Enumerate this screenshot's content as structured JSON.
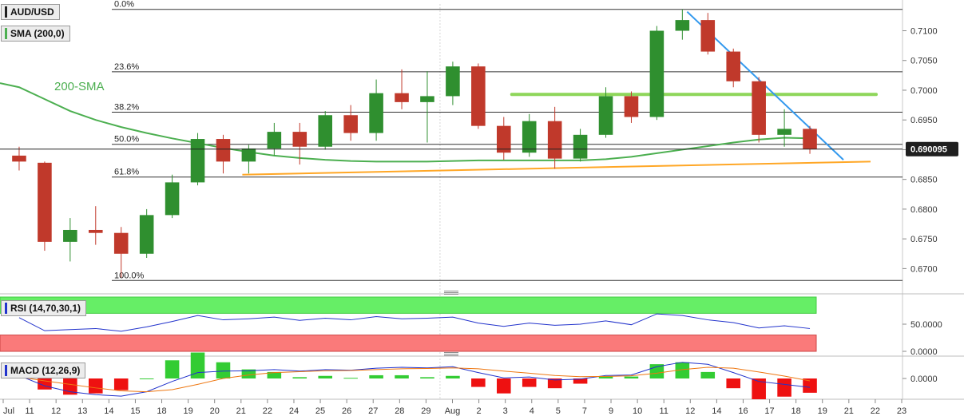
{
  "symbol": "AUD/USD",
  "legends": {
    "sma": "SMA (200,0)",
    "rsi": "RSI (14,70,30,1)",
    "macd": "MACD (12,26,9)"
  },
  "annotations": {
    "sma_text": "200-SMA",
    "current_price": "0.690095"
  },
  "colors": {
    "candle_up": "#2f8f2f",
    "candle_down": "#c0392b",
    "sma": "#4caf50",
    "support_line": "#ffa726",
    "resistance_line": "#8ed65a",
    "trendline": "#3399ee",
    "rsi_line": "#2233cc",
    "rsi_overbought": "#66ee66",
    "rsi_oversold": "#fa7a7a",
    "macd_line": "#2233cc",
    "signal_line": "#ee7711",
    "hist_pos": "#33cc33",
    "hist_neg": "#ee1111",
    "price_tag_bg": "#1f1f1f"
  },
  "chart_data": {
    "type": "candlestick",
    "title": "AUD/USD",
    "timeframe_labels": [
      "Jul",
      "11",
      "12",
      "13",
      "14",
      "15",
      "18",
      "19",
      "20",
      "21",
      "22",
      "24",
      "25",
      "26",
      "27",
      "28",
      "29",
      "Aug",
      "2",
      "3",
      "4",
      "5",
      "7",
      "9",
      "10",
      "11",
      "12",
      "14",
      "16",
      "17",
      "18",
      "19",
      "21",
      "22",
      "23"
    ],
    "price_axis": {
      "ticks": [
        "0.7100",
        "0.7050",
        "0.7000",
        "0.6950",
        "0.6900",
        "0.6850",
        "0.6800",
        "0.6750",
        "0.6700"
      ],
      "range": [
        0.6675,
        0.7145
      ]
    },
    "fibonacci": [
      {
        "label": "0.0%",
        "price": 0.7136
      },
      {
        "label": "23.6%",
        "price": 0.7031
      },
      {
        "label": "38.2%",
        "price": 0.6963
      },
      {
        "label": "50.0%",
        "price": 0.6909
      },
      {
        "label": "61.8%",
        "price": 0.6854
      },
      {
        "label": "100.0%",
        "price": 0.668
      }
    ],
    "current_price": 0.690095,
    "daily": [
      {
        "date": "Jul",
        "o": 0.689,
        "h": 0.6905,
        "l": 0.6865,
        "c": 0.688
      },
      {
        "date": "11",
        "o": 0.6878,
        "h": 0.688,
        "l": 0.673,
        "c": 0.6745
      },
      {
        "date": "12",
        "o": 0.6745,
        "h": 0.6785,
        "l": 0.6712,
        "c": 0.6765
      },
      {
        "date": "13",
        "o": 0.6765,
        "h": 0.6805,
        "l": 0.674,
        "c": 0.676
      },
      {
        "date": "14",
        "o": 0.676,
        "h": 0.677,
        "l": 0.6685,
        "c": 0.6725
      },
      {
        "date": "15",
        "o": 0.6725,
        "h": 0.68,
        "l": 0.6718,
        "c": 0.679
      },
      {
        "date": "18",
        "o": 0.679,
        "h": 0.6858,
        "l": 0.6785,
        "c": 0.6845
      },
      {
        "date": "19",
        "o": 0.6845,
        "h": 0.6928,
        "l": 0.684,
        "c": 0.6918
      },
      {
        "date": "20",
        "o": 0.6918,
        "h": 0.6925,
        "l": 0.686,
        "c": 0.688
      },
      {
        "date": "21",
        "o": 0.688,
        "h": 0.6908,
        "l": 0.686,
        "c": 0.6902
      },
      {
        "date": "22",
        "o": 0.6902,
        "h": 0.6945,
        "l": 0.689,
        "c": 0.693
      },
      {
        "date": "24",
        "o": 0.693,
        "h": 0.6945,
        "l": 0.6875,
        "c": 0.6905
      },
      {
        "date": "25",
        "o": 0.6905,
        "h": 0.6965,
        "l": 0.69,
        "c": 0.6958
      },
      {
        "date": "26",
        "o": 0.6958,
        "h": 0.6975,
        "l": 0.6915,
        "c": 0.6928
      },
      {
        "date": "27",
        "o": 0.6928,
        "h": 0.7018,
        "l": 0.6915,
        "c": 0.6995
      },
      {
        "date": "28",
        "o": 0.6995,
        "h": 0.7035,
        "l": 0.6968,
        "c": 0.698
      },
      {
        "date": "29",
        "o": 0.698,
        "h": 0.7032,
        "l": 0.6912,
        "c": 0.699
      },
      {
        "date": "Aug",
        "o": 0.699,
        "h": 0.7048,
        "l": 0.6975,
        "c": 0.704
      },
      {
        "date": "2",
        "o": 0.704,
        "h": 0.7045,
        "l": 0.6935,
        "c": 0.694
      },
      {
        "date": "3",
        "o": 0.694,
        "h": 0.6955,
        "l": 0.6883,
        "c": 0.6895
      },
      {
        "date": "4",
        "o": 0.6895,
        "h": 0.696,
        "l": 0.6888,
        "c": 0.6948
      },
      {
        "date": "5",
        "o": 0.6948,
        "h": 0.6972,
        "l": 0.6868,
        "c": 0.6885
      },
      {
        "date": "7",
        "o": 0.6885,
        "h": 0.6935,
        "l": 0.688,
        "c": 0.6925
      },
      {
        "date": "9",
        "o": 0.6925,
        "h": 0.7005,
        "l": 0.692,
        "c": 0.699
      },
      {
        "date": "10",
        "o": 0.699,
        "h": 0.6998,
        "l": 0.6945,
        "c": 0.6955
      },
      {
        "date": "11",
        "o": 0.6955,
        "h": 0.7108,
        "l": 0.695,
        "c": 0.71
      },
      {
        "date": "12",
        "o": 0.71,
        "h": 0.7136,
        "l": 0.7085,
        "c": 0.7118
      },
      {
        "date": "14",
        "o": 0.7118,
        "h": 0.713,
        "l": 0.706,
        "c": 0.7065
      },
      {
        "date": "16",
        "o": 0.7065,
        "h": 0.707,
        "l": 0.7005,
        "c": 0.7015
      },
      {
        "date": "17",
        "o": 0.7015,
        "h": 0.7022,
        "l": 0.6912,
        "c": 0.6925
      },
      {
        "date": "18",
        "o": 0.6925,
        "h": 0.6968,
        "l": 0.6905,
        "c": 0.6935
      },
      {
        "date": "19",
        "o": 0.6935,
        "h": 0.694,
        "l": 0.6893,
        "c": 0.6901
      }
    ],
    "sma200": {
      "name": "200-SMA",
      "values": [
        0.7005,
        0.6985,
        0.6965,
        0.695,
        0.6938,
        0.6928,
        0.6919,
        0.6911,
        0.6903,
        0.6896,
        0.689,
        0.6886,
        0.6883,
        0.6881,
        0.688,
        0.688,
        0.688,
        0.6881,
        0.6882,
        0.6882,
        0.6882,
        0.6882,
        0.6882,
        0.6884,
        0.6888,
        0.6894,
        0.69,
        0.6906,
        0.6912,
        0.6917,
        0.692,
        0.6919
      ]
    },
    "rsi": {
      "params": "14,70,30,1",
      "axis_ticks": [
        "50.0000",
        "0.0000"
      ],
      "values": [
        62,
        38,
        40,
        42,
        37,
        45,
        55,
        66,
        58,
        60,
        63,
        57,
        61,
        58,
        64,
        60,
        61,
        63,
        52,
        46,
        52,
        48,
        50,
        56,
        49,
        69,
        66,
        58,
        53,
        43,
        47,
        42
      ]
    },
    "macd": {
      "params": "12,26,9",
      "axis_ticks": [
        "0.0000"
      ],
      "macd": [
        0.001,
        -0.0025,
        -0.0045,
        -0.0055,
        -0.006,
        -0.0045,
        -0.001,
        0.002,
        0.0025,
        0.0026,
        0.003,
        0.0025,
        0.003,
        0.0028,
        0.0035,
        0.0038,
        0.0036,
        0.004,
        0.002,
        0.0002,
        0.0005,
        -0.0005,
        -0.0002,
        0.001,
        0.0012,
        0.004,
        0.0055,
        0.0048,
        0.002,
        -0.001,
        -0.002,
        -0.003
      ],
      "signal": [
        0.0005,
        -0.0008,
        -0.002,
        -0.0032,
        -0.0042,
        -0.0045,
        -0.0038,
        -0.002,
        0.0,
        0.0012,
        0.002,
        0.0023,
        0.0026,
        0.0027,
        0.003,
        0.0033,
        0.0034,
        0.0036,
        0.0033,
        0.0025,
        0.0018,
        0.001,
        0.0006,
        0.0007,
        0.0009,
        0.0018,
        0.003,
        0.0038,
        0.0035,
        0.0022,
        0.0008,
        -0.0008
      ]
    }
  }
}
